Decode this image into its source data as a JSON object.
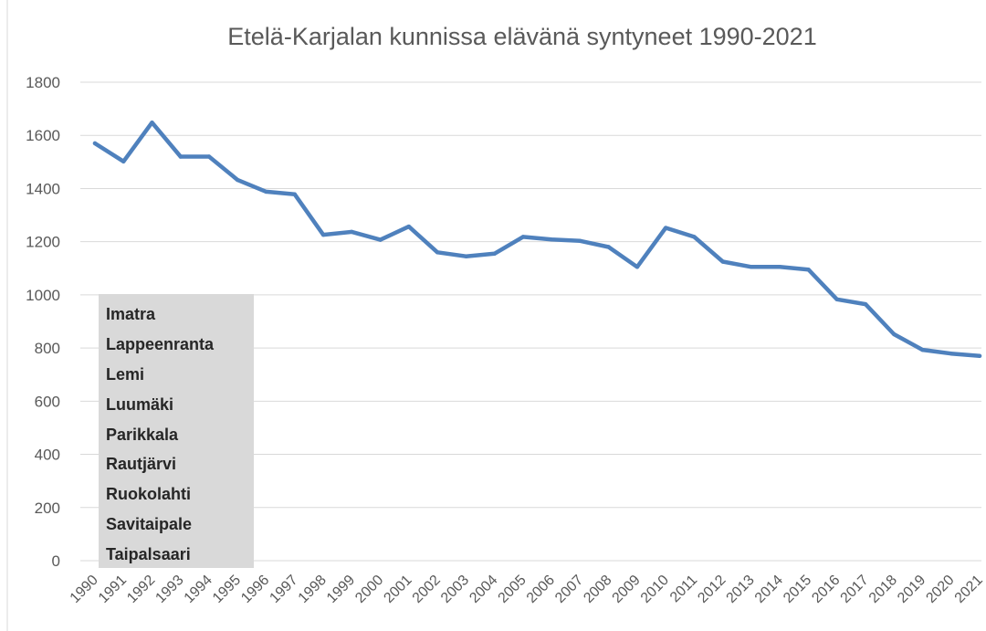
{
  "chart_data": {
    "type": "line",
    "title": "Etelä-Karjalan kunnissa elävänä syntyneet 1990-2021",
    "xlabel": "",
    "ylabel": "",
    "ylim": [
      0,
      1800
    ],
    "yticks": [
      0,
      200,
      400,
      600,
      800,
      1000,
      1200,
      1400,
      1600,
      1800
    ],
    "grid": true,
    "x": [
      "1990",
      "1991",
      "1992",
      "1993",
      "1994",
      "1995",
      "1996",
      "1997",
      "1998",
      "1999",
      "2000",
      "2001",
      "2002",
      "2003",
      "2004",
      "2005",
      "2006",
      "2007",
      "2008",
      "2009",
      "2010",
      "2011",
      "2012",
      "2013",
      "2014",
      "2015",
      "2016",
      "2017",
      "2018",
      "2019",
      "2020",
      "2021"
    ],
    "series": [
      {
        "color": "#4f81bd",
        "values": [
          1570,
          1502,
          1648,
          1520,
          1520,
          1432,
          1388,
          1378,
          1226,
          1237,
          1207,
          1257,
          1160,
          1145,
          1155,
          1218,
          1208,
          1203,
          1180,
          1105,
          1252,
          1218,
          1125,
          1105,
          1105,
          1095,
          983,
          965,
          852,
          793,
          779,
          770
        ]
      }
    ],
    "annotation": {
      "items": [
        "Imatra",
        "Lappeenranta",
        "Lemi",
        "Luumäki",
        "Parikkala",
        "Rautjärvi",
        "Ruokolahti",
        "Savitaipale",
        "Taipalsaari"
      ],
      "background": "#d9d9d9"
    }
  }
}
